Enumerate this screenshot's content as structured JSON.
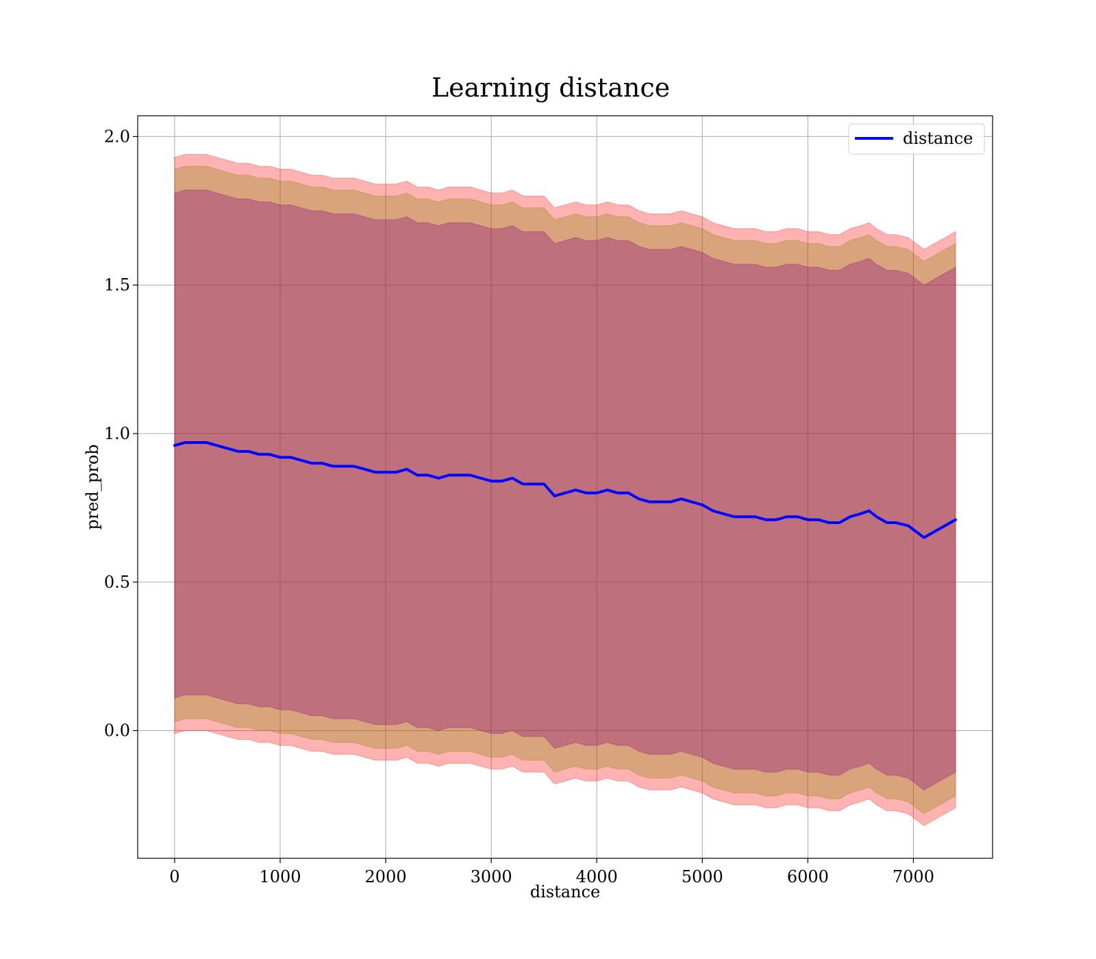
{
  "chart_data": {
    "type": "line",
    "title": "Learning distance",
    "xlabel": "distance",
    "ylabel": "pred_prob",
    "xlim": [
      -350,
      7750
    ],
    "ylim": [
      -0.43,
      2.07
    ],
    "xticks": [
      0,
      1000,
      2000,
      3000,
      4000,
      5000,
      6000,
      7000
    ],
    "yticks": [
      0.0,
      0.5,
      1.0,
      1.5,
      2.0
    ],
    "xtick_labels": [
      "0",
      "1000",
      "2000",
      "3000",
      "4000",
      "5000",
      "6000",
      "7000"
    ],
    "ytick_labels": [
      "0.0",
      "0.5",
      "1.0",
      "1.5",
      "2.0"
    ],
    "grid": true,
    "legend_position": "top-right",
    "legend": [
      "distance"
    ],
    "colors": {
      "line": "#0000ff",
      "band_outer": "#ff0000",
      "band_middle": "#808000",
      "band_inner": "#800080",
      "grid": "#b0b0b0"
    },
    "series": [
      {
        "name": "distance",
        "x": [
          0,
          100,
          200,
          300,
          400,
          500,
          600,
          700,
          800,
          900,
          1000,
          1100,
          1200,
          1300,
          1400,
          1500,
          1600,
          1700,
          1800,
          1900,
          2000,
          2100,
          2200,
          2300,
          2400,
          2500,
          2600,
          2700,
          2800,
          2900,
          3000,
          3100,
          3200,
          3300,
          3400,
          3500,
          3600,
          3700,
          3800,
          3900,
          4000,
          4100,
          4200,
          4300,
          4400,
          4500,
          4600,
          4700,
          4800,
          4900,
          5000,
          5100,
          5200,
          5300,
          5400,
          5500,
          5600,
          5700,
          5800,
          5900,
          6000,
          6100,
          6200,
          6300,
          6400,
          6500,
          6580,
          6650,
          6750,
          6830,
          6950,
          7100,
          7250,
          7400
        ],
        "y": [
          0.96,
          0.97,
          0.97,
          0.97,
          0.96,
          0.95,
          0.94,
          0.94,
          0.93,
          0.93,
          0.92,
          0.92,
          0.91,
          0.9,
          0.9,
          0.89,
          0.89,
          0.89,
          0.88,
          0.87,
          0.87,
          0.87,
          0.88,
          0.86,
          0.86,
          0.85,
          0.86,
          0.86,
          0.86,
          0.85,
          0.84,
          0.84,
          0.85,
          0.83,
          0.83,
          0.83,
          0.79,
          0.8,
          0.81,
          0.8,
          0.8,
          0.81,
          0.8,
          0.8,
          0.78,
          0.77,
          0.77,
          0.77,
          0.78,
          0.77,
          0.76,
          0.74,
          0.73,
          0.72,
          0.72,
          0.72,
          0.71,
          0.71,
          0.72,
          0.72,
          0.71,
          0.71,
          0.7,
          0.7,
          0.72,
          0.73,
          0.74,
          0.72,
          0.7,
          0.7,
          0.69,
          0.65,
          0.68,
          0.71
        ]
      }
    ],
    "bands": [
      {
        "name": "outer",
        "upper": [
          1.93,
          1.94,
          1.94,
          1.94,
          1.93,
          1.92,
          1.91,
          1.91,
          1.9,
          1.9,
          1.89,
          1.89,
          1.88,
          1.87,
          1.87,
          1.86,
          1.86,
          1.86,
          1.85,
          1.84,
          1.84,
          1.84,
          1.85,
          1.83,
          1.83,
          1.82,
          1.83,
          1.83,
          1.83,
          1.82,
          1.81,
          1.81,
          1.82,
          1.8,
          1.8,
          1.8,
          1.76,
          1.77,
          1.78,
          1.77,
          1.77,
          1.78,
          1.77,
          1.77,
          1.75,
          1.74,
          1.74,
          1.74,
          1.75,
          1.74,
          1.73,
          1.71,
          1.7,
          1.69,
          1.69,
          1.69,
          1.68,
          1.68,
          1.69,
          1.69,
          1.68,
          1.68,
          1.67,
          1.67,
          1.69,
          1.7,
          1.71,
          1.69,
          1.67,
          1.67,
          1.66,
          1.62,
          1.65,
          1.68
        ],
        "lower": [
          -0.01,
          0.0,
          0.0,
          0.0,
          -0.01,
          -0.02,
          -0.03,
          -0.03,
          -0.04,
          -0.04,
          -0.05,
          -0.05,
          -0.06,
          -0.07,
          -0.07,
          -0.08,
          -0.08,
          -0.08,
          -0.09,
          -0.1,
          -0.1,
          -0.1,
          -0.09,
          -0.11,
          -0.11,
          -0.12,
          -0.11,
          -0.11,
          -0.11,
          -0.12,
          -0.13,
          -0.13,
          -0.12,
          -0.14,
          -0.14,
          -0.14,
          -0.18,
          -0.17,
          -0.16,
          -0.17,
          -0.17,
          -0.16,
          -0.17,
          -0.17,
          -0.19,
          -0.2,
          -0.2,
          -0.2,
          -0.19,
          -0.2,
          -0.21,
          -0.23,
          -0.24,
          -0.25,
          -0.25,
          -0.25,
          -0.26,
          -0.26,
          -0.25,
          -0.25,
          -0.26,
          -0.26,
          -0.27,
          -0.27,
          -0.25,
          -0.24,
          -0.23,
          -0.25,
          -0.27,
          -0.27,
          -0.28,
          -0.32,
          -0.29,
          -0.26
        ]
      },
      {
        "name": "middle",
        "upper": [
          1.89,
          1.9,
          1.9,
          1.9,
          1.89,
          1.88,
          1.87,
          1.87,
          1.86,
          1.86,
          1.85,
          1.85,
          1.84,
          1.83,
          1.83,
          1.82,
          1.82,
          1.82,
          1.81,
          1.8,
          1.8,
          1.8,
          1.81,
          1.79,
          1.79,
          1.78,
          1.79,
          1.79,
          1.79,
          1.78,
          1.77,
          1.77,
          1.78,
          1.76,
          1.76,
          1.76,
          1.72,
          1.73,
          1.74,
          1.73,
          1.73,
          1.74,
          1.73,
          1.73,
          1.71,
          1.7,
          1.7,
          1.7,
          1.71,
          1.7,
          1.69,
          1.67,
          1.66,
          1.65,
          1.65,
          1.65,
          1.64,
          1.64,
          1.65,
          1.65,
          1.64,
          1.64,
          1.63,
          1.63,
          1.65,
          1.66,
          1.67,
          1.65,
          1.63,
          1.63,
          1.62,
          1.58,
          1.61,
          1.64
        ],
        "lower": [
          0.03,
          0.04,
          0.04,
          0.04,
          0.03,
          0.02,
          0.01,
          0.01,
          0.0,
          0.0,
          -0.01,
          -0.01,
          -0.02,
          -0.03,
          -0.03,
          -0.04,
          -0.04,
          -0.04,
          -0.05,
          -0.06,
          -0.06,
          -0.06,
          -0.05,
          -0.07,
          -0.07,
          -0.08,
          -0.07,
          -0.07,
          -0.07,
          -0.08,
          -0.09,
          -0.09,
          -0.08,
          -0.1,
          -0.1,
          -0.1,
          -0.14,
          -0.13,
          -0.12,
          -0.13,
          -0.13,
          -0.12,
          -0.13,
          -0.13,
          -0.15,
          -0.16,
          -0.16,
          -0.16,
          -0.15,
          -0.16,
          -0.17,
          -0.19,
          -0.2,
          -0.21,
          -0.21,
          -0.21,
          -0.22,
          -0.22,
          -0.21,
          -0.21,
          -0.22,
          -0.22,
          -0.23,
          -0.23,
          -0.21,
          -0.2,
          -0.19,
          -0.21,
          -0.23,
          -0.23,
          -0.24,
          -0.28,
          -0.25,
          -0.22
        ]
      },
      {
        "name": "inner",
        "upper": [
          1.81,
          1.82,
          1.82,
          1.82,
          1.81,
          1.8,
          1.79,
          1.79,
          1.78,
          1.78,
          1.77,
          1.77,
          1.76,
          1.75,
          1.75,
          1.74,
          1.74,
          1.74,
          1.73,
          1.72,
          1.72,
          1.72,
          1.73,
          1.71,
          1.71,
          1.7,
          1.71,
          1.71,
          1.71,
          1.7,
          1.69,
          1.69,
          1.7,
          1.68,
          1.68,
          1.68,
          1.64,
          1.65,
          1.66,
          1.65,
          1.65,
          1.66,
          1.65,
          1.65,
          1.63,
          1.62,
          1.62,
          1.62,
          1.63,
          1.62,
          1.61,
          1.59,
          1.58,
          1.57,
          1.57,
          1.57,
          1.56,
          1.56,
          1.57,
          1.57,
          1.56,
          1.56,
          1.55,
          1.55,
          1.57,
          1.58,
          1.59,
          1.57,
          1.55,
          1.55,
          1.54,
          1.5,
          1.53,
          1.56
        ],
        "lower": [
          0.11,
          0.12,
          0.12,
          0.12,
          0.11,
          0.1,
          0.09,
          0.09,
          0.08,
          0.08,
          0.07,
          0.07,
          0.06,
          0.05,
          0.05,
          0.04,
          0.04,
          0.04,
          0.03,
          0.02,
          0.02,
          0.02,
          0.03,
          0.01,
          0.01,
          0.0,
          0.01,
          0.01,
          0.01,
          0.0,
          -0.01,
          -0.01,
          0.0,
          -0.02,
          -0.02,
          -0.02,
          -0.06,
          -0.05,
          -0.04,
          -0.05,
          -0.05,
          -0.04,
          -0.05,
          -0.05,
          -0.07,
          -0.08,
          -0.08,
          -0.08,
          -0.07,
          -0.08,
          -0.09,
          -0.11,
          -0.12,
          -0.13,
          -0.13,
          -0.13,
          -0.14,
          -0.14,
          -0.13,
          -0.13,
          -0.14,
          -0.14,
          -0.15,
          -0.15,
          -0.13,
          -0.12,
          -0.11,
          -0.13,
          -0.15,
          -0.15,
          -0.16,
          -0.2,
          -0.17,
          -0.14
        ]
      }
    ]
  }
}
